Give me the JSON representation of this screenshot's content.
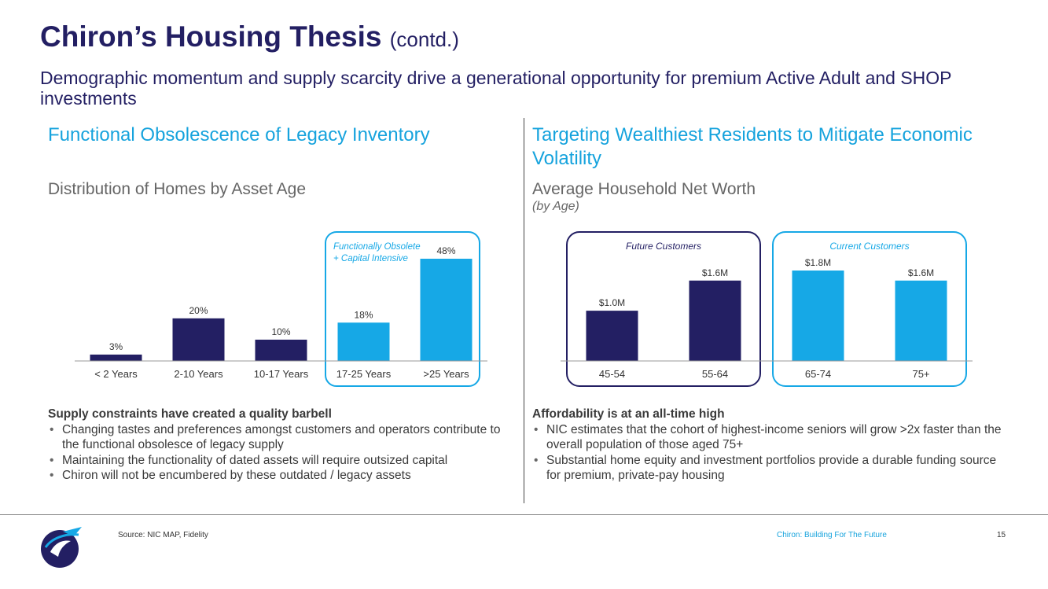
{
  "header": {
    "title": "Chiron’s Housing Thesis",
    "title_suffix": "(contd.)",
    "subtitle": "Demographic momentum and supply scarcity drive a generational opportunity for premium Active Adult and SHOP investments"
  },
  "left": {
    "section_title": "Functional Obsolescence of Legacy Inventory",
    "bullets_head": "Supply constraints have created a quality barbell",
    "bullets": [
      "Changing tastes and preferences amongst customers and operators contribute to the functional obsolesce of legacy supply",
      "Maintaining the functionality of dated assets will require outsized capital",
      "Chiron will not be encumbered by these outdated / legacy assets"
    ]
  },
  "right": {
    "section_title": "Targeting Wealthiest Residents to Mitigate Economic Volatility",
    "bullets_head": "Affordability is at an all-time high",
    "bullets": [
      "NIC estimates that the cohort of highest-income seniors will grow >2x faster than the overall population of those aged 75+",
      "Substantial home equity and investment portfolios provide a durable funding source for premium, private-pay housing"
    ]
  },
  "chart_data": [
    {
      "type": "bar",
      "title": "Distribution of Homes by Asset Age",
      "categories": [
        "< 2 Years",
        "2-10 Years",
        "10-17 Years",
        "17-25 Years",
        ">25 Years"
      ],
      "values": [
        3,
        20,
        10,
        18,
        48
      ],
      "labels": [
        "3%",
        "20%",
        "10%",
        "18%",
        "48%"
      ],
      "colors": [
        "#231F63",
        "#231F63",
        "#231F63",
        "#16A8E6",
        "#16A8E6"
      ],
      "ylim": [
        0,
        48
      ],
      "highlight": {
        "label": "Functionally Obsolete + Capital Intensive",
        "label_lines": [
          "Functionally Obsolete",
          "+ Capital Intensive"
        ],
        "from_index": 3,
        "to_index": 4
      }
    },
    {
      "type": "bar",
      "title": "Average Household Net Worth",
      "subtitle": "(by Age)",
      "categories": [
        "45-54",
        "55-64",
        "65-74",
        "75+"
      ],
      "values": [
        1.0,
        1.6,
        1.8,
        1.6
      ],
      "labels": [
        "$1.0M",
        "$1.6M",
        "$1.8M",
        "$1.6M"
      ],
      "unit": "$M",
      "colors": [
        "#231F63",
        "#231F63",
        "#16A8E6",
        "#16A8E6"
      ],
      "ylim": [
        0,
        1.8
      ],
      "groups": [
        {
          "label": "Future Customers",
          "from_index": 0,
          "to_index": 1,
          "color": "#231F63"
        },
        {
          "label": "Current Customers",
          "from_index": 2,
          "to_index": 3,
          "color": "#16A8E6"
        }
      ]
    }
  ],
  "footer": {
    "source": "Source: NIC MAP, Fidelity",
    "tagline": "Chiron: Building For The Future",
    "page_number": "15"
  }
}
